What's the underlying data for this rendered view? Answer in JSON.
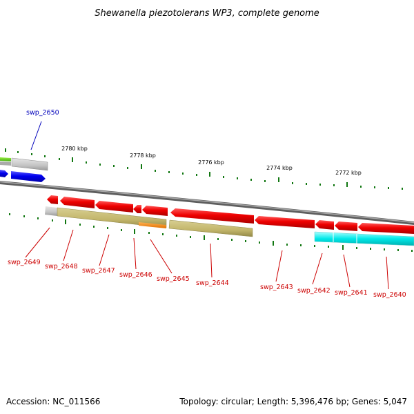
{
  "title": "Shewanella piezotolerans WP3, complete genome",
  "footer": {
    "accession": "Accession: NC_011566",
    "summary": "Topology: circular; Length: 5,396,476 bp; Genes: 5,047"
  },
  "colors": {
    "backbone": "#808080",
    "gene_red": "#e80000",
    "gene_blue": "#0000e8",
    "label_red": "#cc0000",
    "label_blue": "#0000bb",
    "tick": "#117711",
    "olive": "#c2b56a",
    "orange": "#f08000",
    "cyan": "#00e0e0",
    "gray_bar": "#c0c0c0",
    "green_bar": "#66cc22"
  },
  "scale_labels": [
    "2780 kbp",
    "2778 kbp",
    "2776 kbp",
    "2774 kbp",
    "2772 kbp"
  ],
  "genes": [
    {
      "label": "swp_2650",
      "color_key": "label_blue"
    },
    {
      "label": "swp_2649",
      "color_key": "label_red"
    },
    {
      "label": "swp_2648",
      "color_key": "label_red"
    },
    {
      "label": "swp_2647",
      "color_key": "label_red"
    },
    {
      "label": "swp_2646",
      "color_key": "label_red"
    },
    {
      "label": "swp_2645",
      "color_key": "label_red"
    },
    {
      "label": "swp_2644",
      "color_key": "label_red"
    },
    {
      "label": "swp_2643",
      "color_key": "label_red"
    },
    {
      "label": "swp_2642",
      "color_key": "label_red"
    },
    {
      "label": "swp_2641",
      "color_key": "label_red"
    },
    {
      "label": "swp_2640",
      "color_key": "label_red"
    }
  ]
}
